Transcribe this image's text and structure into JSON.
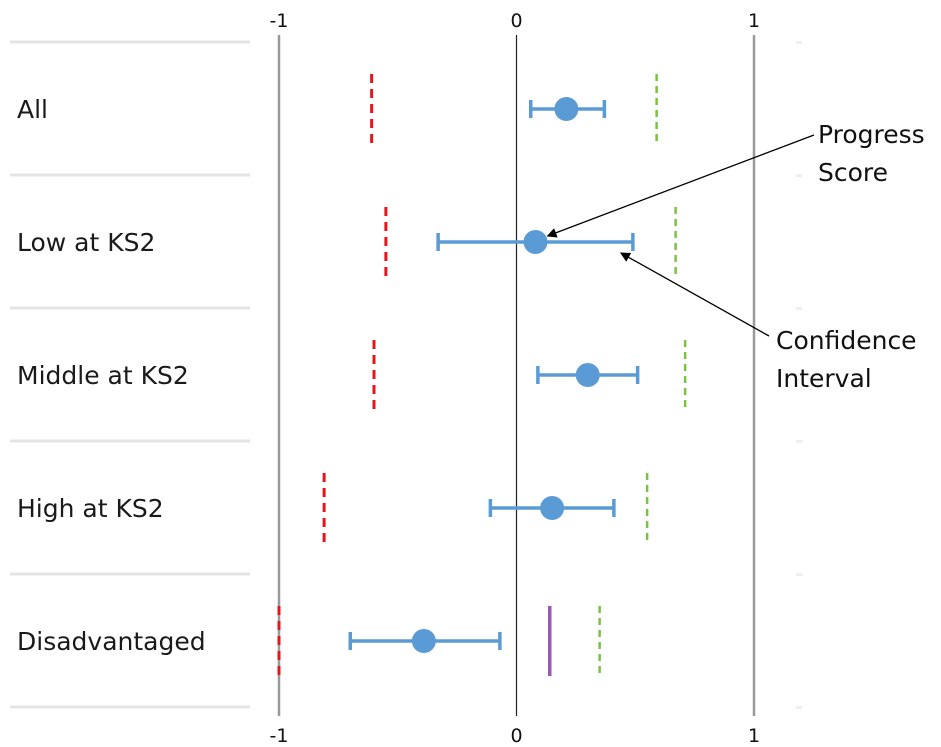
{
  "chart_data": {
    "type": "forest",
    "xlim": [
      -1,
      1
    ],
    "x_ticks": [
      -1,
      0,
      1
    ],
    "x_tick_labels": [
      "-1",
      "0",
      "1"
    ],
    "categories": [
      "All",
      "Low at KS2",
      "Middle at KS2",
      "High at KS2",
      "Disadvantaged"
    ],
    "rows": [
      {
        "label": "All",
        "score": 0.21,
        "ci_low": 0.06,
        "ci_high": 0.37,
        "lower_marker": -0.61,
        "upper_marker": 0.59,
        "extra_marker": null
      },
      {
        "label": "Low at KS2",
        "score": 0.08,
        "ci_low": -0.33,
        "ci_high": 0.49,
        "lower_marker": -0.55,
        "upper_marker": 0.67,
        "extra_marker": null
      },
      {
        "label": "Middle at KS2",
        "score": 0.3,
        "ci_low": 0.09,
        "ci_high": 0.51,
        "lower_marker": -0.6,
        "upper_marker": 0.71,
        "extra_marker": null
      },
      {
        "label": "High at KS2",
        "score": 0.15,
        "ci_low": -0.11,
        "ci_high": 0.41,
        "lower_marker": -0.81,
        "upper_marker": 0.55,
        "extra_marker": null
      },
      {
        "label": "Disadvantaged",
        "score": -0.39,
        "ci_low": -0.7,
        "ci_high": -0.07,
        "lower_marker": -1.0,
        "upper_marker": 0.35,
        "extra_marker": 0.14
      }
    ],
    "annotations": [
      {
        "text_lines": [
          "Progress",
          "Score"
        ],
        "target_row": 1,
        "target": "score"
      },
      {
        "text_lines": [
          "Confidence",
          "Interval"
        ],
        "target_row": 1,
        "target": "ci_high"
      }
    ],
    "colors": {
      "point": "#5b9bd5",
      "ci": "#5b9bd5",
      "lower_marker": "#e8141a",
      "upper_marker": "#7cc242",
      "extra_marker": "#9b59b6",
      "zero_line": "#222222",
      "bound_lines": "#999999",
      "separator": "#e4e4e4"
    }
  }
}
